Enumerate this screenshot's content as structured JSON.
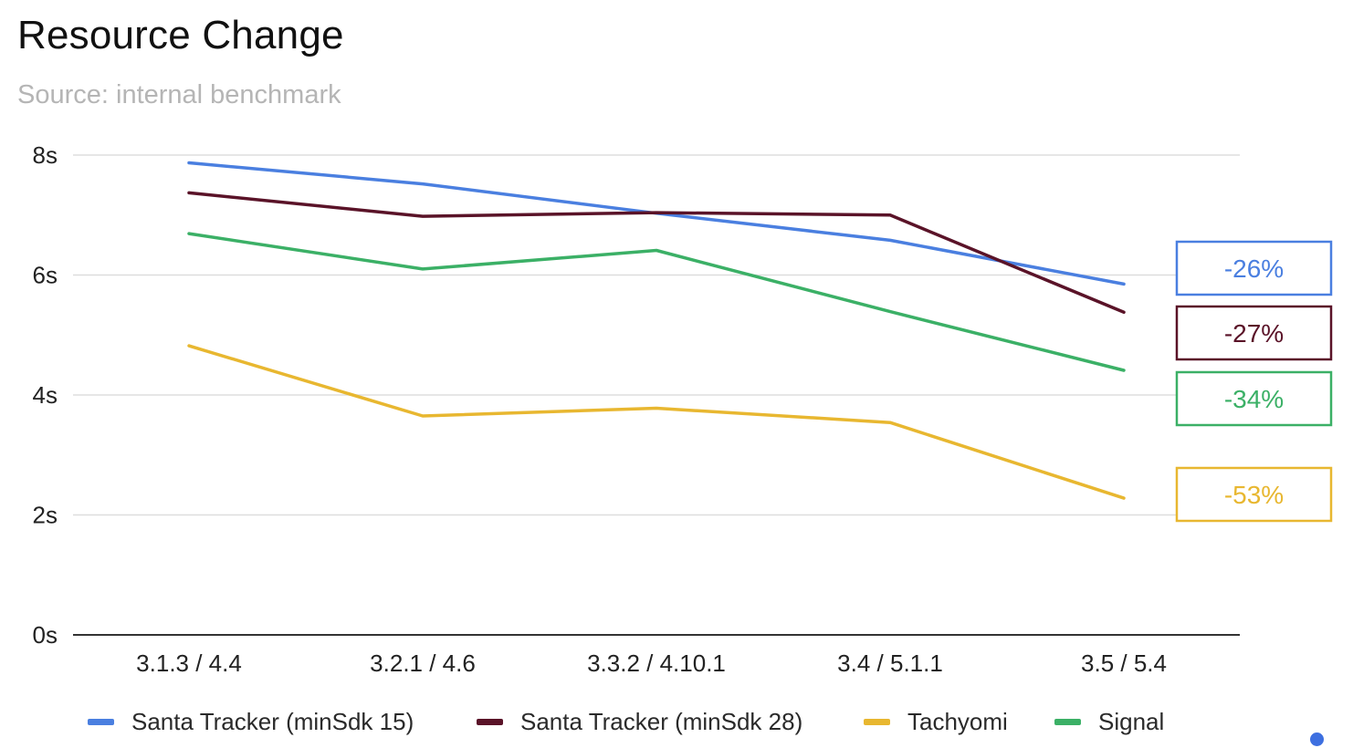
{
  "chart_data": {
    "type": "line",
    "title": "Resource Change",
    "subtitle": "Source: internal benchmark",
    "xlabel": "",
    "ylabel": "",
    "categories": [
      "3.1.3 / 4.4",
      "3.2.1 / 4.6",
      "3.3.2 / 4.10.1",
      "3.4 / 5.1.1",
      "3.5 / 5.4"
    ],
    "ylim": [
      0,
      8
    ],
    "yticks": [
      0,
      2,
      4,
      6,
      8
    ],
    "ytick_labels": [
      "0s",
      "2s",
      "4s",
      "6s",
      "8s"
    ],
    "grid": true,
    "legend_position": "bottom",
    "series": [
      {
        "name": "Santa Tracker (minSdk 15)",
        "color": "#4a7fe0",
        "values": [
          7.87,
          7.52,
          7.03,
          6.58,
          5.85
        ],
        "change_label": "-26%"
      },
      {
        "name": "Santa Tracker (minSdk 28)",
        "color": "#5a1328",
        "values": [
          7.37,
          6.98,
          7.04,
          7.0,
          5.38
        ],
        "change_label": "-27%"
      },
      {
        "name": "Tachyomi",
        "color": "#e8b730",
        "values": [
          4.82,
          3.65,
          3.78,
          3.54,
          2.28
        ],
        "change_label": "-53%"
      },
      {
        "name": "Signal",
        "color": "#3bb066",
        "values": [
          6.69,
          6.1,
          6.41,
          5.39,
          4.41
        ],
        "change_label": "-34%"
      }
    ],
    "badge_order": [
      0,
      1,
      3,
      2
    ]
  },
  "indicator_color": "#3d6fe0"
}
